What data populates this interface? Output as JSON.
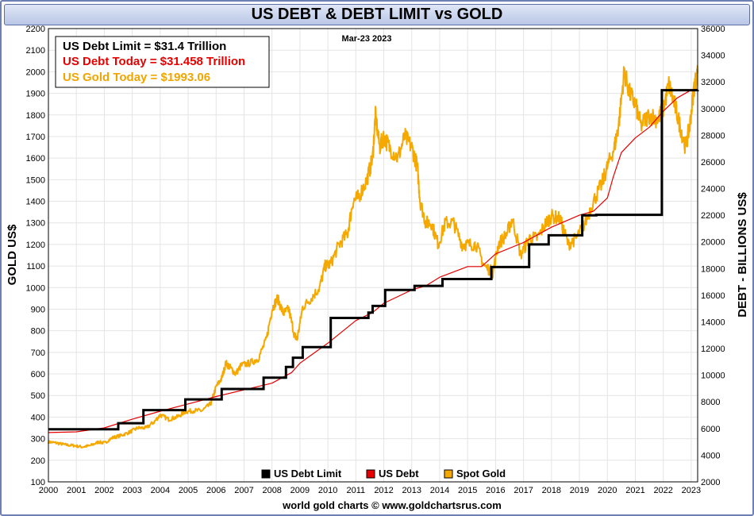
{
  "title": "US DEBT & DEBT LIMIT vs GOLD",
  "date_label": "Mar-23  2023",
  "credit": "world gold charts © www.goldchartsrus.com",
  "info_box": [
    {
      "text": "US Debt Limit    = $31.4 Trillion",
      "color": "#000000"
    },
    {
      "text": "US Debt Today = $31.458 Trillion",
      "color": "#e60000"
    },
    {
      "text": "US Gold Today = $1993.06",
      "color": "#f0a500"
    }
  ],
  "chart_data": {
    "type": "line",
    "title": "US DEBT & DEBT LIMIT vs GOLD",
    "xlabel": "",
    "ylabel_left": "GOLD US$",
    "ylabel_right": "DEBT - BILLIONS US$",
    "xlim": [
      2000,
      2023.23
    ],
    "ylim_left": [
      100,
      2200
    ],
    "ylim_right": [
      2000,
      36000
    ],
    "x_ticks": [
      "2000",
      "2001",
      "2002",
      "2003",
      "2004",
      "2005",
      "2006",
      "2007",
      "2008",
      "2009",
      "2010",
      "2011",
      "2012",
      "2013",
      "2014",
      "2015",
      "2016",
      "2017",
      "2018",
      "2019",
      "2020",
      "2021",
      "2022",
      "2023"
    ],
    "y_ticks_left": [
      100,
      200,
      300,
      400,
      500,
      600,
      700,
      800,
      900,
      1000,
      1100,
      1200,
      1300,
      1400,
      1500,
      1600,
      1700,
      1800,
      1900,
      2000,
      2100,
      2200
    ],
    "y_ticks_right": [
      2000,
      4000,
      6000,
      8000,
      10000,
      12000,
      14000,
      16000,
      18000,
      20000,
      22000,
      24000,
      26000,
      28000,
      30000,
      32000,
      34000,
      36000
    ],
    "grid": true,
    "legend_position": "bottom-center",
    "series": [
      {
        "name": "US Debt Limit",
        "color": "#000000",
        "axis": "right",
        "step": true,
        "x": [
          2000.0,
          2002.5,
          2003.4,
          2004.9,
          2006.2,
          2007.7,
          2008.5,
          2008.75,
          2009.1,
          2010.1,
          2011.45,
          2011.6,
          2012.05,
          2013.1,
          2014.1,
          2015.85,
          2017.2,
          2017.9,
          2019.1,
          2019.6,
          2021.95,
          2023.23
        ],
        "y": [
          5950,
          6400,
          7384,
          8184,
          8965,
          9815,
          10615,
          11315,
          12104,
          14294,
          14694,
          15194,
          16394,
          16699,
          17212,
          18113,
          19809,
          20493,
          21988,
          22030,
          31381,
          31400
        ]
      },
      {
        "name": "US Debt",
        "color": "#e60000",
        "axis": "right",
        "x": [
          2000.0,
          2001.0,
          2002.0,
          2003.0,
          2004.0,
          2005.0,
          2006.0,
          2007.0,
          2008.0,
          2008.7,
          2009.0,
          2010.0,
          2011.0,
          2011.6,
          2012.0,
          2013.0,
          2013.5,
          2014.0,
          2015.0,
          2015.5,
          2016.0,
          2017.0,
          2018.0,
          2019.0,
          2019.5,
          2020.0,
          2020.2,
          2020.5,
          2021.0,
          2021.5,
          2022.0,
          2022.5,
          2023.0,
          2023.23
        ],
        "y": [
          5700,
          5750,
          6050,
          6700,
          7300,
          7850,
          8400,
          8900,
          9400,
          10200,
          10900,
          12400,
          14100,
          14700,
          15400,
          16400,
          16700,
          17350,
          18150,
          18150,
          19100,
          19950,
          21100,
          22000,
          22300,
          23300,
          24800,
          26700,
          27800,
          28600,
          29800,
          30800,
          31400,
          31458
        ]
      },
      {
        "name": "Spot Gold",
        "color": "#f5a800",
        "axis": "left",
        "x": [
          2000.0,
          2000.3,
          2000.6,
          2000.9,
          2001.2,
          2001.5,
          2001.8,
          2002.0,
          2002.3,
          2002.6,
          2002.9,
          2003.2,
          2003.5,
          2003.8,
          2004.0,
          2004.3,
          2004.6,
          2004.9,
          2005.2,
          2005.5,
          2005.8,
          2006.0,
          2006.2,
          2006.35,
          2006.5,
          2006.7,
          2006.9,
          2007.2,
          2007.5,
          2007.8,
          2008.0,
          2008.2,
          2008.4,
          2008.6,
          2008.8,
          2008.9,
          2009.1,
          2009.4,
          2009.7,
          2009.9,
          2010.1,
          2010.4,
          2010.7,
          2010.9,
          2011.1,
          2011.4,
          2011.6,
          2011.7,
          2011.85,
          2012.0,
          2012.2,
          2012.5,
          2012.75,
          2013.0,
          2013.2,
          2013.3,
          2013.5,
          2013.7,
          2013.95,
          2014.2,
          2014.5,
          2014.8,
          2015.0,
          2015.3,
          2015.6,
          2015.9,
          2016.1,
          2016.4,
          2016.6,
          2016.9,
          2017.2,
          2017.5,
          2017.8,
          2018.0,
          2018.3,
          2018.6,
          2018.9,
          2019.2,
          2019.5,
          2019.8,
          2020.0,
          2020.25,
          2020.4,
          2020.6,
          2020.8,
          2021.0,
          2021.2,
          2021.5,
          2021.8,
          2022.0,
          2022.2,
          2022.4,
          2022.6,
          2022.8,
          2022.95,
          2023.1,
          2023.23
        ],
        "y": [
          285,
          280,
          272,
          268,
          262,
          268,
          285,
          280,
          305,
          315,
          330,
          350,
          350,
          380,
          410,
          390,
          400,
          425,
          430,
          430,
          460,
          540,
          580,
          650,
          630,
          600,
          640,
          650,
          670,
          760,
          900,
          950,
          880,
          900,
          780,
          760,
          910,
          950,
          1000,
          1100,
          1110,
          1200,
          1250,
          1400,
          1420,
          1500,
          1600,
          1800,
          1650,
          1700,
          1650,
          1600,
          1700,
          1650,
          1560,
          1400,
          1300,
          1300,
          1200,
          1300,
          1300,
          1200,
          1200,
          1200,
          1100,
          1070,
          1200,
          1250,
          1320,
          1150,
          1230,
          1230,
          1300,
          1330,
          1320,
          1200,
          1230,
          1300,
          1400,
          1480,
          1560,
          1650,
          1750,
          2000,
          1900,
          1850,
          1750,
          1800,
          1780,
          1830,
          1940,
          1850,
          1750,
          1650,
          1750,
          1930,
          1993
        ]
      }
    ]
  }
}
